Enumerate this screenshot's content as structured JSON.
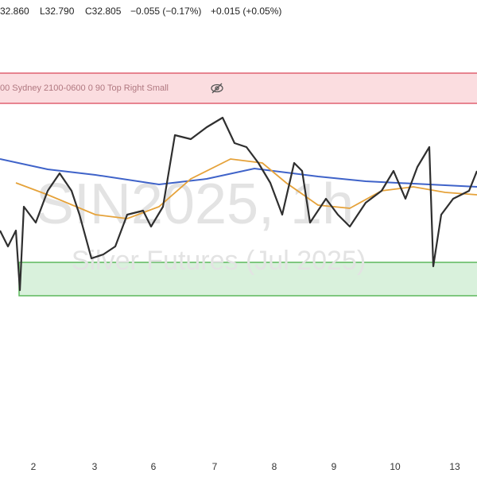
{
  "header": {
    "high": "32.860",
    "low": "L32.790",
    "close": "C32.805",
    "change": "−0.055 (−0.17%)",
    "extra": "+0.015 (+0.05%)"
  },
  "session_box": {
    "label": "00 Sydney 2100-0600 0 90 Top Right Small"
  },
  "watermark": {
    "symbol": "SIN2025, 1h",
    "name": "Silver Futures (Jul 2025)"
  },
  "x_axis": {
    "labels": [
      "2",
      "3",
      "6",
      "7",
      "8",
      "9",
      "10",
      "13"
    ]
  }
}
